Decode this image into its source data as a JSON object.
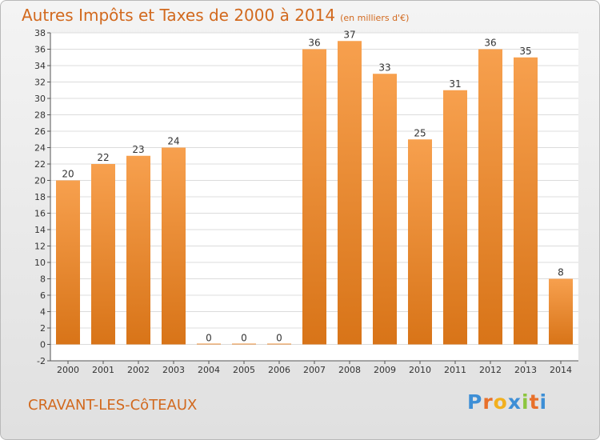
{
  "header": {
    "title": "Autres Impôts et Taxes de 2000 à 2014",
    "unit": "(en milliers d'€)"
  },
  "footer": {
    "commune": "CRAVANT-LES-CôTEAUX",
    "logo_letters": [
      "P",
      "r",
      "o",
      "x",
      "i",
      "t",
      "i"
    ],
    "logo_colors": [
      "#3e8fd6",
      "#e8702a",
      "#f2b01e",
      "#3e8fd6",
      "#8cc63f",
      "#e8702a",
      "#3e8fd6"
    ]
  },
  "chart_data": {
    "type": "bar",
    "title": "Autres Impôts et Taxes de 2000 à 2014",
    "xlabel": "",
    "ylabel": "",
    "categories": [
      "2000",
      "2001",
      "2002",
      "2003",
      "2004",
      "2005",
      "2006",
      "2007",
      "2008",
      "2009",
      "2010",
      "2011",
      "2012",
      "2013",
      "2014"
    ],
    "values": [
      20,
      22,
      23,
      24,
      0,
      0,
      0,
      36,
      37,
      33,
      25,
      31,
      36,
      35,
      8
    ],
    "ylim": [
      -2,
      38
    ],
    "yticks": [
      -2,
      0,
      2,
      4,
      6,
      8,
      10,
      12,
      14,
      16,
      18,
      20,
      22,
      24,
      26,
      28,
      30,
      32,
      34,
      36,
      38
    ],
    "grid": true,
    "bar_color_light": "#f7a04e",
    "bar_color_dark": "#d87418"
  }
}
